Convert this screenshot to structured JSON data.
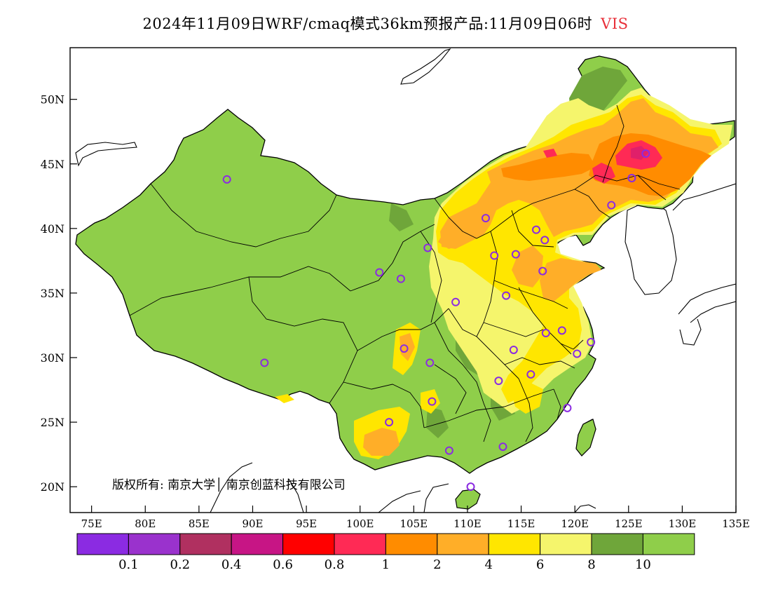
{
  "title": {
    "main": "2024年11月09日WRF/cmaq模式36km预报产品:11月09日06时",
    "variable": "VIS",
    "variable_color": "#e8303a"
  },
  "copyright": "版权所有: 南京大学│ 南京创蓝科技有限公司",
  "axes": {
    "lat_labels": [
      "20N",
      "25N",
      "30N",
      "35N",
      "40N",
      "45N",
      "50N"
    ],
    "lon_labels": [
      "75E",
      "80E",
      "85E",
      "90E",
      "95E",
      "100E",
      "105E",
      "110E",
      "115E",
      "120E",
      "125E",
      "130E",
      "135E"
    ]
  },
  "legend": {
    "colors": [
      "#8b2be2",
      "#9a32cd",
      "#b03060",
      "#c71585",
      "#ff0000",
      "#ff2a55",
      "#ff8c00",
      "#ffae28",
      "#ffe600",
      "#f5f56c",
      "#6fa63a",
      "#8fce4a"
    ],
    "labels": [
      "0.1",
      "0.2",
      "0.4",
      "0.6",
      "0.8",
      "1",
      "2",
      "4",
      "6",
      "8",
      "10"
    ]
  },
  "colors": {
    "land_good": "#8fce4a",
    "dark_green": "#6fa63a",
    "yellow_light": "#f5f56c",
    "yellow": "#ffe600",
    "orange_light": "#ffae28",
    "orange": "#ff8c00",
    "pink": "#ff2a55",
    "magenta": "#e0206a",
    "station_marker": "#8b2be2"
  },
  "stations_lonlat": [
    [
      87.6,
      43.8
    ],
    [
      91.1,
      29.6
    ],
    [
      101.8,
      36.6
    ],
    [
      103.8,
      36.1
    ],
    [
      106.3,
      38.5
    ],
    [
      111.7,
      40.8
    ],
    [
      112.5,
      37.9
    ],
    [
      114.5,
      38.0
    ],
    [
      116.4,
      39.9
    ],
    [
      117.2,
      39.1
    ],
    [
      117.0,
      36.7
    ],
    [
      113.6,
      34.8
    ],
    [
      108.9,
      34.3
    ],
    [
      104.1,
      30.7
    ],
    [
      106.5,
      29.6
    ],
    [
      106.7,
      26.6
    ],
    [
      102.7,
      25.0
    ],
    [
      108.3,
      22.8
    ],
    [
      113.3,
      23.1
    ],
    [
      110.3,
      20.0
    ],
    [
      112.9,
      28.2
    ],
    [
      114.3,
      30.6
    ],
    [
      115.9,
      28.7
    ],
    [
      117.3,
      31.9
    ],
    [
      118.8,
      32.1
    ],
    [
      120.2,
      30.3
    ],
    [
      121.5,
      31.2
    ],
    [
      119.3,
      26.1
    ],
    [
      123.4,
      41.8
    ],
    [
      125.3,
      43.9
    ],
    [
      126.6,
      45.8
    ]
  ]
}
